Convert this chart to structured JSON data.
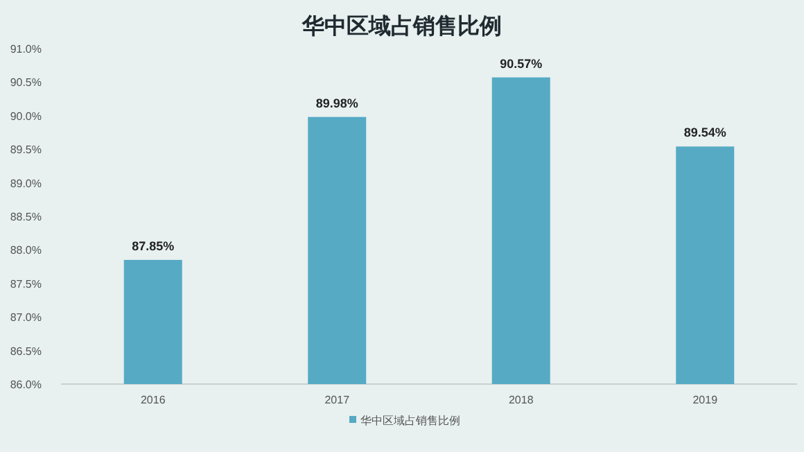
{
  "chart_data": {
    "type": "bar",
    "title": "华中区域占销售比例",
    "categories": [
      "2016",
      "2017",
      "2018",
      "2019"
    ],
    "series": [
      {
        "name": "华中区域占销售比例",
        "color": "#56aac4",
        "values": [
          87.85,
          89.98,
          90.57,
          89.54
        ],
        "value_labels": [
          "87.85%",
          "89.98%",
          "90.57%",
          "89.54%"
        ]
      }
    ],
    "ylim": [
      86.0,
      91.0
    ],
    "yticks": [
      {
        "value": 86.0,
        "label": "86.0%"
      },
      {
        "value": 86.5,
        "label": "86.5%"
      },
      {
        "value": 87.0,
        "label": "87.0%"
      },
      {
        "value": 87.5,
        "label": "87.5%"
      },
      {
        "value": 88.0,
        "label": "88.0%"
      },
      {
        "value": 88.5,
        "label": "88.5%"
      },
      {
        "value": 89.0,
        "label": "89.0%"
      },
      {
        "value": 89.5,
        "label": "89.5%"
      },
      {
        "value": 90.0,
        "label": "90.0%"
      },
      {
        "value": 90.5,
        "label": "90.5%"
      },
      {
        "value": 91.0,
        "label": "91.0%"
      }
    ],
    "grid": false,
    "legend": "bottom"
  }
}
